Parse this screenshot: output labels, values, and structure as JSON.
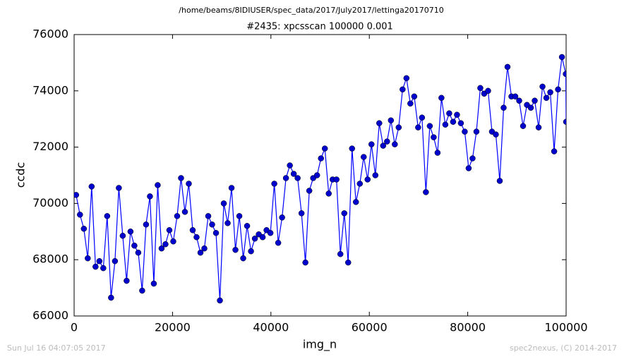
{
  "chart_data": {
    "type": "line",
    "subtitle": "/home/beams/8IDIUSER/spec_data/2017/July2017/lettinga20170710",
    "title": "#2435: xpcsscan 100000 0.001",
    "xlabel": "img_n",
    "ylabel": "ccdc",
    "annotations": [
      "Sun Jul 16 04:07:05 2017",
      "spec2nexus, (C) 2014-2017"
    ],
    "xlim": [
      0,
      100000
    ],
    "xticks": [
      0,
      20000,
      40000,
      60000,
      80000,
      100000
    ],
    "ylim": [
      66000,
      76000
    ],
    "yticks": [
      66000,
      68000,
      70000,
      72000,
      74000,
      76000
    ],
    "grid": false,
    "markers": true,
    "x": [
      400,
      1190,
      1980,
      2770,
      3560,
      4350,
      5140,
      5930,
      6720,
      7510,
      8300,
      9090,
      9880,
      10670,
      11460,
      12250,
      13040,
      13830,
      14620,
      15410,
      16200,
      16990,
      17780,
      18570,
      19360,
      20150,
      20940,
      21730,
      22520,
      23310,
      24100,
      24890,
      25680,
      26470,
      27260,
      28050,
      28840,
      29630,
      30420,
      31210,
      32000,
      32790,
      33580,
      34370,
      35160,
      35950,
      36740,
      37530,
      38320,
      39110,
      39900,
      40690,
      41480,
      42270,
      43060,
      43850,
      44640,
      45430,
      46220,
      47010,
      47800,
      48590,
      49380,
      50170,
      50960,
      51750,
      52540,
      53330,
      54120,
      54910,
      55700,
      56490,
      57280,
      58070,
      58860,
      59650,
      60440,
      61230,
      62020,
      62810,
      63600,
      64390,
      65180,
      65970,
      66760,
      67550,
      68340,
      69130,
      69920,
      70710,
      71500,
      72290,
      73080,
      73870,
      74660,
      75450,
      76240,
      77030,
      77820,
      78610,
      79400,
      80190,
      80980,
      81770,
      82560,
      83350,
      84140,
      84930,
      85720,
      86510,
      87300,
      88090,
      88880,
      89670,
      90460,
      91250,
      92040,
      92830,
      93620,
      94410,
      95200,
      95990,
      96780,
      97570,
      98360,
      99150,
      99940,
      100000
    ],
    "series": [
      {
        "color": "#0000ff",
        "marker_color": "#0000cc",
        "values": [
          70300,
          69600,
          69100,
          68050,
          70600,
          67750,
          67950,
          67700,
          69550,
          66650,
          67950,
          70550,
          68850,
          67250,
          69000,
          68500,
          68250,
          66900,
          69250,
          70250,
          67150,
          70650,
          68400,
          68550,
          69050,
          68650,
          69550,
          70900,
          69700,
          70700,
          69050,
          68800,
          68250,
          68400,
          69550,
          69250,
          68950,
          66550,
          70000,
          69300,
          70550,
          68350,
          69550,
          68050,
          69200,
          68300,
          68750,
          68900,
          68800,
          69050,
          68950,
          70700,
          68600,
          69500,
          70900,
          71350,
          71050,
          70900,
          69650,
          67900,
          70450,
          70900,
          71000,
          71600,
          71950,
          70350,
          70850,
          70850,
          68200,
          69650,
          67900,
          71950,
          70050,
          70700,
          71650,
          70850,
          72100,
          71000,
          72850,
          72050,
          72200,
          72950,
          72100,
          72700,
          74050,
          74450,
          73550,
          73800,
          72700,
          73050,
          70400,
          72750,
          72350,
          71800,
          73750,
          72800,
          73200,
          72900,
          73150,
          72850,
          72550,
          71250,
          71600,
          72550,
          74100,
          73900,
          74000,
          72550,
          72450,
          70800,
          73400,
          74850,
          73800,
          73800,
          73650,
          72750,
          73500,
          73400,
          73650,
          72700,
          74150,
          73750,
          73950,
          71850,
          74050,
          75200,
          74600,
          72900
        ]
      }
    ]
  }
}
